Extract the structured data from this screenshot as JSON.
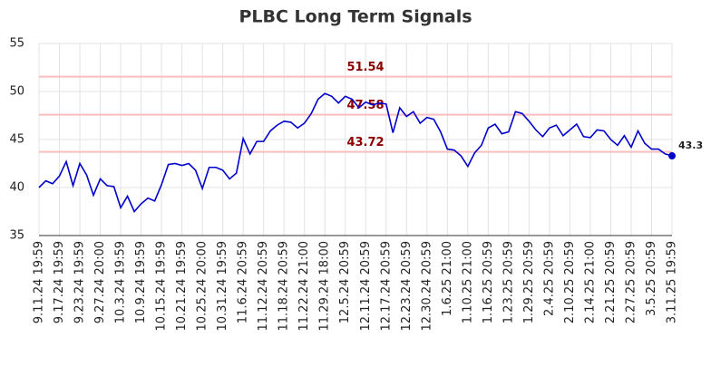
{
  "chart_data": {
    "type": "line",
    "title": "PLBC Long Term Signals",
    "categories": [
      "9.11.24 19:59",
      null,
      null,
      "9.17.24 19:59",
      null,
      null,
      "9.23.24 19:59",
      null,
      null,
      "9.27.24 20:00",
      null,
      null,
      "10.3.24 19:59",
      null,
      null,
      "10.9.24 19:59",
      null,
      null,
      "10.15.24 19:59",
      null,
      null,
      "10.21.24 19:59",
      null,
      null,
      "10.25.24 20:00",
      null,
      null,
      "10.31.24 19:59",
      null,
      null,
      "11.6.24 20:59",
      null,
      null,
      "11.12.24 20:59",
      null,
      null,
      "11.18.24 20:59",
      null,
      null,
      "11.22.24 21:00",
      null,
      null,
      "11.29.24 18:00",
      null,
      null,
      "12.5.24 20:59",
      null,
      null,
      "12.11.24 20:59",
      null,
      null,
      "12.17.24 20:59",
      null,
      null,
      "12.23.24 20:59",
      null,
      null,
      "12.30.24 20:59",
      null,
      null,
      "1.6.25 21:00",
      null,
      null,
      "1.10.25 21:00",
      null,
      null,
      "1.16.25 20:59",
      null,
      null,
      "1.23.25 20:59",
      null,
      null,
      "1.29.25 20:59",
      null,
      null,
      "2.4.25 20:59",
      null,
      null,
      "2.10.25 20:59",
      null,
      null,
      "2.14.25 21:00",
      null,
      null,
      "2.21.25 20:59",
      null,
      null,
      "2.27.25 20:59",
      null,
      null,
      "3.5.25 20:59",
      null,
      null,
      "3.11.25 19:59"
    ],
    "series": [
      {
        "color": "#0000cc",
        "values": [
          40.0,
          40.7,
          40.4,
          41.2,
          42.7,
          40.2,
          42.5,
          41.3,
          39.2,
          40.9,
          40.2,
          40.1,
          37.9,
          39.1,
          37.5,
          38.3,
          38.9,
          38.6,
          40.3,
          42.4,
          42.5,
          42.3,
          42.5,
          41.8,
          39.9,
          42.1,
          42.1,
          41.8,
          40.9,
          41.5,
          45.1,
          43.5,
          44.8,
          44.8,
          45.9,
          46.5,
          46.9,
          46.8,
          46.2,
          46.7,
          47.7,
          49.2,
          49.8,
          49.5,
          48.8,
          49.5,
          49.2,
          48.3,
          48.9,
          48.6,
          48.8,
          48.7,
          45.7,
          48.3,
          47.4,
          47.9,
          46.7,
          47.3,
          47.1,
          45.8,
          44.0,
          43.9,
          43.3,
          42.2,
          43.6,
          44.4,
          46.2,
          46.6,
          45.6,
          45.8,
          47.9,
          47.7,
          46.9,
          46.0,
          45.3,
          46.2,
          46.5,
          45.4,
          46.0,
          46.6,
          45.3,
          45.2,
          46.0,
          45.9,
          45.0,
          44.4,
          45.4,
          44.2,
          45.9,
          44.6,
          44.0,
          44.0,
          43.5,
          43.3
        ]
      }
    ],
    "hlines": [
      {
        "value": 51.54
      },
      {
        "value": 47.58
      },
      {
        "value": 43.72
      }
    ],
    "ylim": [
      35,
      55
    ],
    "yticks": [
      35,
      40,
      45,
      50,
      55
    ],
    "grid": true
  }
}
